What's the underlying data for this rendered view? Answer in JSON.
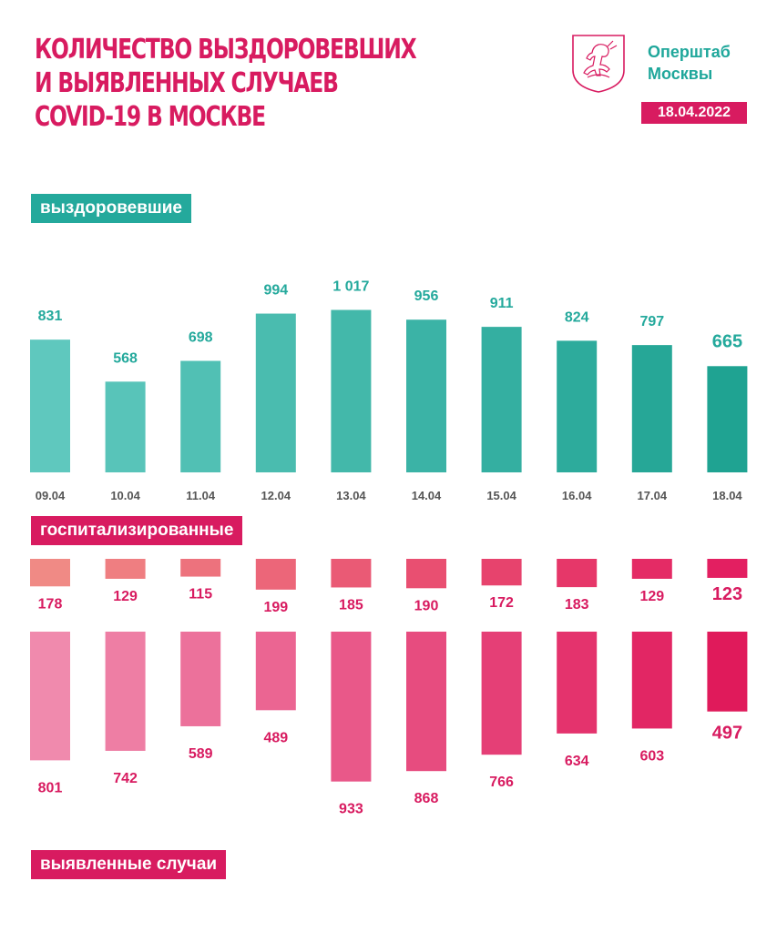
{
  "title": {
    "line1": "Количество выздоровевших",
    "line2": "и выявленных случаев",
    "line3": "COVID-19 в Москве"
  },
  "org": {
    "line1": "Оперштаб",
    "line2": "Москвы"
  },
  "date": "18.04.2022",
  "labels": {
    "recovered": "выздоровевшие",
    "hospitalized": "госпитализированные",
    "new_cases": "выявленные случаи"
  },
  "colors": {
    "accent": "#d81b60",
    "teal": "#24a99c",
    "teal_light": "#5fc8be",
    "teal_dark": "#1fa392",
    "hosp_light": "#f08a85",
    "hosp_dark": "#e31f61",
    "cases_light": "#f08aad",
    "cases_dark": "#e01a5b"
  },
  "chart_data": [
    {
      "type": "bar",
      "title": "выздоровевшие",
      "categories": [
        "09.04",
        "10.04",
        "11.04",
        "12.04",
        "13.04",
        "14.04",
        "15.04",
        "16.04",
        "17.04",
        "18.04"
      ],
      "values": [
        831,
        568,
        698,
        994,
        1017,
        956,
        911,
        824,
        797,
        665
      ],
      "value_labels": [
        "831",
        "568",
        "698",
        "994",
        "1 017",
        "956",
        "911",
        "824",
        "797",
        "665"
      ],
      "direction": "up"
    },
    {
      "type": "bar",
      "title": "госпитализированные",
      "categories": [
        "09.04",
        "10.04",
        "11.04",
        "12.04",
        "13.04",
        "14.04",
        "15.04",
        "16.04",
        "17.04",
        "18.04"
      ],
      "values": [
        178,
        129,
        115,
        199,
        185,
        190,
        172,
        183,
        129,
        123
      ],
      "value_labels": [
        "178",
        "129",
        "115",
        "199",
        "185",
        "190",
        "172",
        "183",
        "129",
        "123"
      ],
      "direction": "down"
    },
    {
      "type": "bar",
      "title": "выявленные случаи",
      "categories": [
        "09.04",
        "10.04",
        "11.04",
        "12.04",
        "13.04",
        "14.04",
        "15.04",
        "16.04",
        "17.04",
        "18.04"
      ],
      "values": [
        801,
        742,
        589,
        489,
        933,
        868,
        766,
        634,
        603,
        497
      ],
      "value_labels": [
        "801",
        "742",
        "589",
        "489",
        "933",
        "868",
        "766",
        "634",
        "603",
        "497"
      ],
      "direction": "down"
    }
  ]
}
